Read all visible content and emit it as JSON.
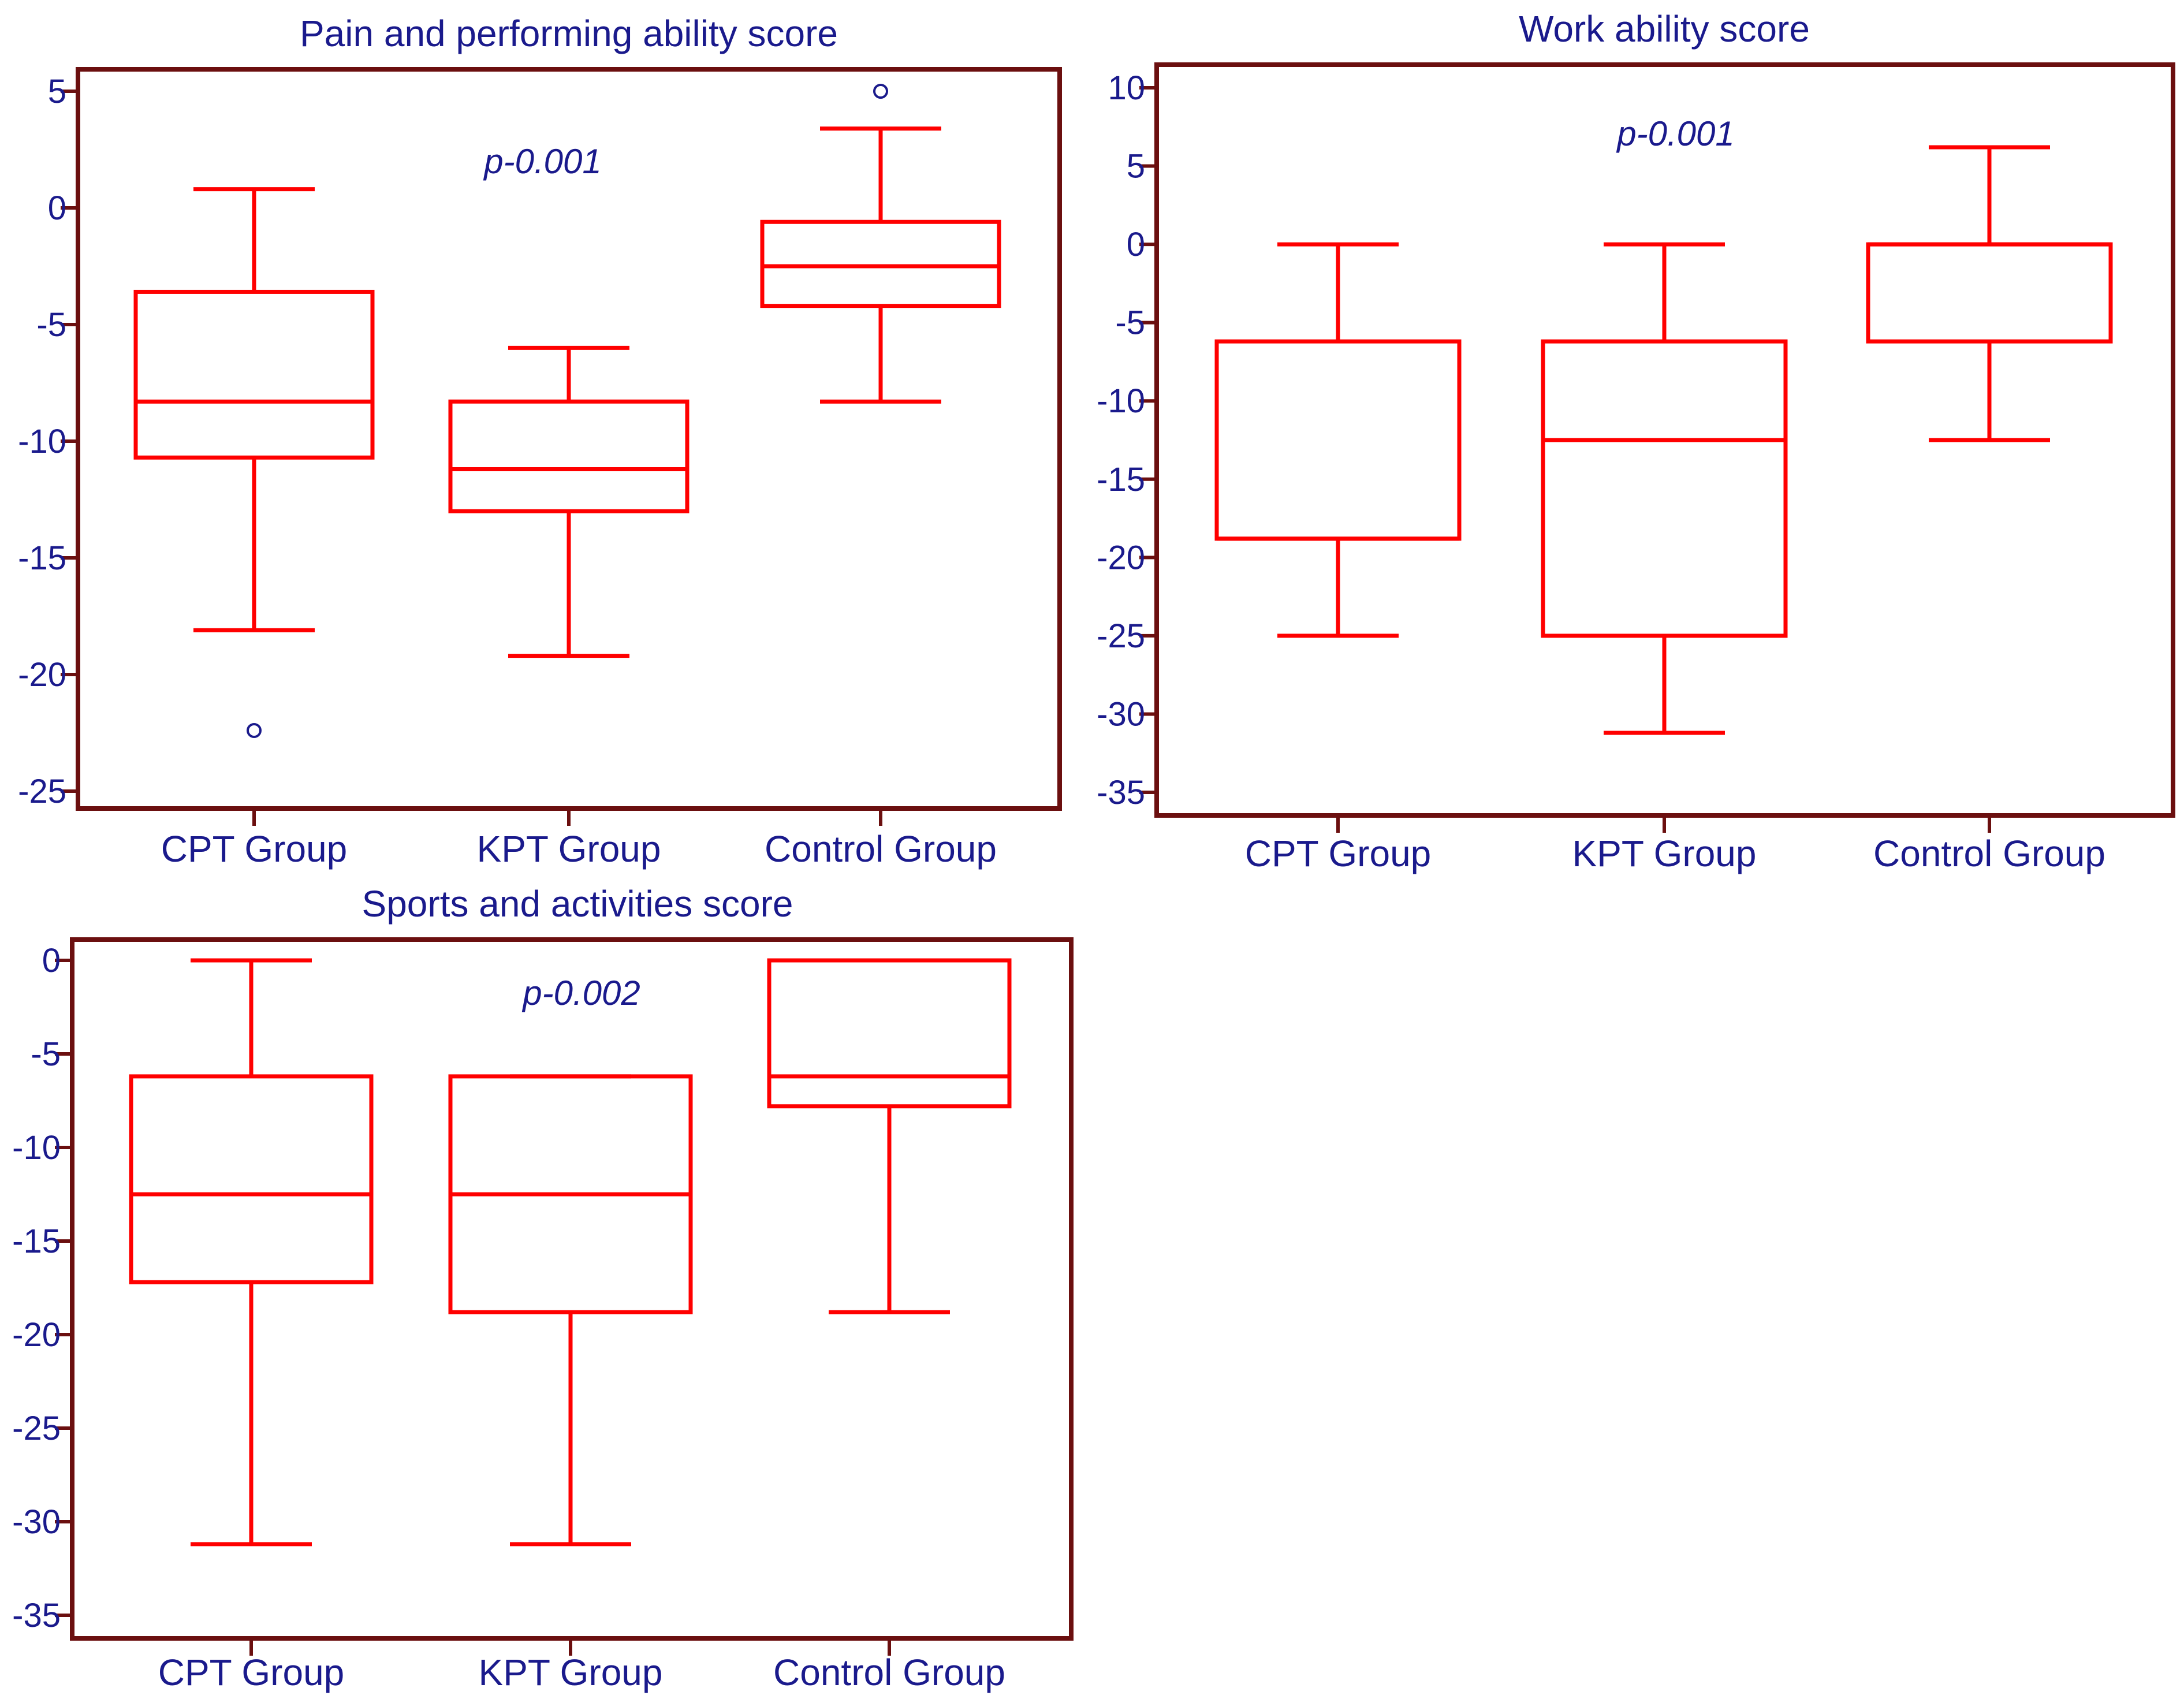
{
  "figure": {
    "colors": {
      "box": "#ff0000",
      "frame": "#6b0f0f",
      "text": "#1a1a8c",
      "outlier": "#1a1a8c"
    }
  },
  "chart_data": [
    {
      "type": "box",
      "title": "Pain and performing ability score",
      "annotation": "p-0.001",
      "categories": [
        "CPT Group",
        "KPT Group",
        "Control Group"
      ],
      "ylim": [
        -26,
        6
      ],
      "yticks": [
        5,
        0,
        -5,
        -10,
        -15,
        -20,
        -25
      ],
      "boxes": [
        {
          "min": -18.1,
          "q1": -10.7,
          "median": -8.3,
          "q3": -3.6,
          "max": 0.8,
          "outliers": [
            -22.4
          ]
        },
        {
          "min": -19.2,
          "q1": -13.0,
          "median": -11.2,
          "q3": -8.3,
          "max": -6.0,
          "outliers": []
        },
        {
          "min": -8.3,
          "q1": -4.2,
          "median": -2.5,
          "q3": -0.6,
          "max": 3.4,
          "outliers": [
            5.0
          ]
        }
      ]
    },
    {
      "type": "box",
      "title": "Work ability score",
      "annotation": "p-0.001",
      "categories": [
        "CPT Group",
        "KPT Group",
        "Control Group"
      ],
      "ylim": [
        -36,
        11
      ],
      "yticks": [
        10,
        5,
        0,
        -5,
        -10,
        -15,
        -20,
        -25,
        -30,
        -35
      ],
      "boxes": [
        {
          "min": -25.0,
          "q1": -18.8,
          "median": -18.8,
          "q3": -6.2,
          "max": 0.0,
          "outliers": []
        },
        {
          "min": -31.2,
          "q1": -25.0,
          "median": -12.5,
          "q3": -6.2,
          "max": 0.0,
          "outliers": []
        },
        {
          "min": -12.5,
          "q1": -6.2,
          "median": 0.0,
          "q3": 0.0,
          "max": 6.2,
          "outliers": []
        }
      ]
    },
    {
      "type": "box",
      "title": "Sports and activities score",
      "annotation": "p-0.002",
      "categories": [
        "CPT Group",
        "KPT Group",
        "Control Group"
      ],
      "ylim": [
        -36,
        1
      ],
      "yticks": [
        0,
        -5,
        -10,
        -15,
        -20,
        -25,
        -30,
        -35
      ],
      "boxes": [
        {
          "min": -31.2,
          "q1": -17.2,
          "median": -12.5,
          "q3": -6.2,
          "max": 0.0,
          "outliers": []
        },
        {
          "min": -31.2,
          "q1": -18.8,
          "median": -12.5,
          "q3": -6.2,
          "max": -6.2,
          "outliers": []
        },
        {
          "min": -18.8,
          "q1": -7.8,
          "median": -6.2,
          "q3": 0.0,
          "max": 0.0,
          "outliers": []
        }
      ]
    }
  ]
}
